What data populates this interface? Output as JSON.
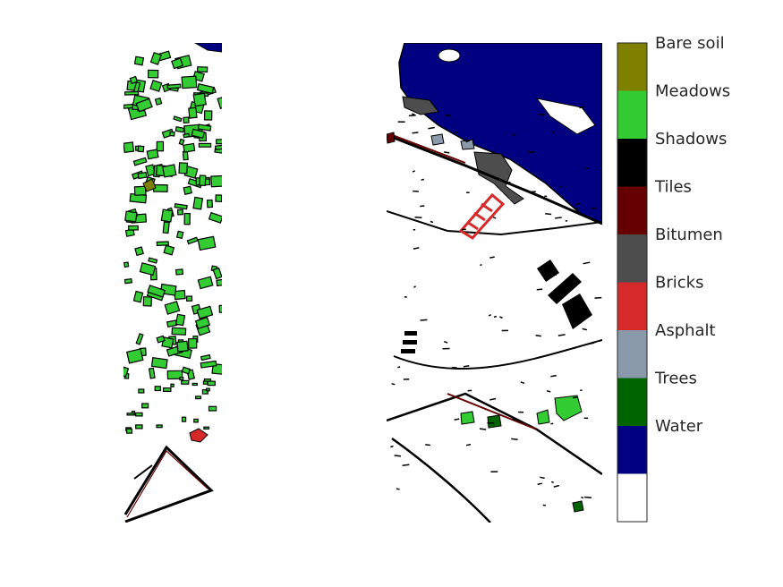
{
  "chart_data": {
    "type": "heatmap",
    "panels": [
      {
        "name": "left-classification-map"
      },
      {
        "name": "right-classification-map"
      }
    ],
    "colorbar": {
      "placement": "right",
      "classes": [
        {
          "label": "Bare soil",
          "color": "#808000"
        },
        {
          "label": "Meadows",
          "color": "#33cc33"
        },
        {
          "label": "Shadows",
          "color": "#000000"
        },
        {
          "label": "Tiles",
          "color": "#660000"
        },
        {
          "label": "Bitumen",
          "color": "#4d4d4d"
        },
        {
          "label": "Bricks",
          "color": "#d62a2a"
        },
        {
          "label": "Asphalt",
          "color": "#8a9aab"
        },
        {
          "label": "Trees",
          "color": "#006400"
        },
        {
          "label": "Water",
          "color": "#000080"
        },
        {
          "label": "",
          "color": "#ffffff"
        }
      ]
    }
  }
}
